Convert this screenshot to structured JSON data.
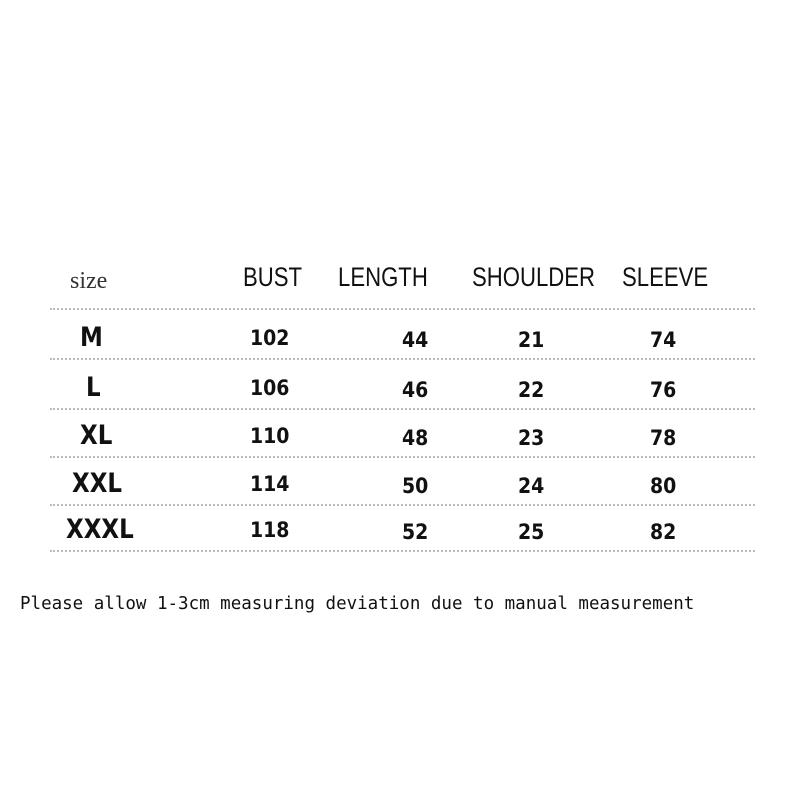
{
  "table": {
    "headers": [
      "size",
      "BUST",
      "LENGTH",
      "SHOULDER",
      "SLEEVE"
    ],
    "rows": [
      {
        "size": "M",
        "bust": "102",
        "length": "44",
        "shoulder": "21",
        "sleeve": "74"
      },
      {
        "size": "L",
        "bust": "106",
        "length": "46",
        "shoulder": "22",
        "sleeve": "76"
      },
      {
        "size": "XL",
        "bust": "110",
        "length": "48",
        "shoulder": "23",
        "sleeve": "78"
      },
      {
        "size": "XXL",
        "bust": "114",
        "length": "50",
        "shoulder": "24",
        "sleeve": "80"
      },
      {
        "size": "XXXL",
        "bust": "118",
        "length": "52",
        "shoulder": "25",
        "sleeve": "82"
      }
    ]
  },
  "note": "Please allow 1-3cm measuring deviation due to manual measurement"
}
